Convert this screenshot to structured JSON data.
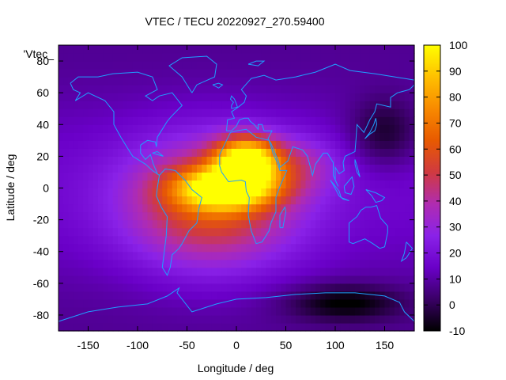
{
  "chart_data": {
    "type": "heatmap",
    "title": "VTEC / TECU 20220927_270.59400",
    "xlabel": "Longitude / deg",
    "ylabel": "Latitude / deg",
    "key_label": "'Vtec_",
    "xlim": [
      -180,
      180
    ],
    "ylim": [
      -90,
      90
    ],
    "xticks": [
      -150,
      -100,
      -50,
      0,
      50,
      100,
      150
    ],
    "yticks": [
      -80,
      -60,
      -40,
      -20,
      0,
      20,
      40,
      60,
      80
    ],
    "colorbar": {
      "range": [
        -10,
        100
      ],
      "ticks": [
        -10,
        0,
        10,
        20,
        30,
        40,
        50,
        60,
        70,
        80,
        90,
        100
      ],
      "colors": [
        "#000000",
        "#3a0066",
        "#6a00c8",
        "#8a22e8",
        "#b02cb0",
        "#d03a40",
        "#e85a00",
        "#f88a00",
        "#ffc000",
        "#ffff00"
      ]
    },
    "coastline_color": "#1f9fff",
    "field_model": {
      "background_tecu": 12,
      "peaks": [
        {
          "lon": 10,
          "lat": 18,
          "tecu": 90,
          "sigma_lon": 22,
          "sigma_lat": 10
        },
        {
          "lon": -10,
          "lat": 0,
          "tecu": 82,
          "sigma_lon": 35,
          "sigma_lat": 9
        },
        {
          "lon": -25,
          "lat": -10,
          "tecu": 58,
          "sigma_lon": 60,
          "sigma_lat": 28
        },
        {
          "lon": 60,
          "lat": 15,
          "tecu": 30,
          "sigma_lon": 30,
          "sigma_lat": 12
        }
      ],
      "troughs": [
        {
          "lon": 110,
          "lat": -72,
          "tecu": -8,
          "sigma_lon": 40,
          "sigma_lat": 8
        },
        {
          "lon": 150,
          "lat": 35,
          "tecu": -5,
          "sigma_lon": 25,
          "sigma_lat": 15
        }
      ]
    }
  }
}
